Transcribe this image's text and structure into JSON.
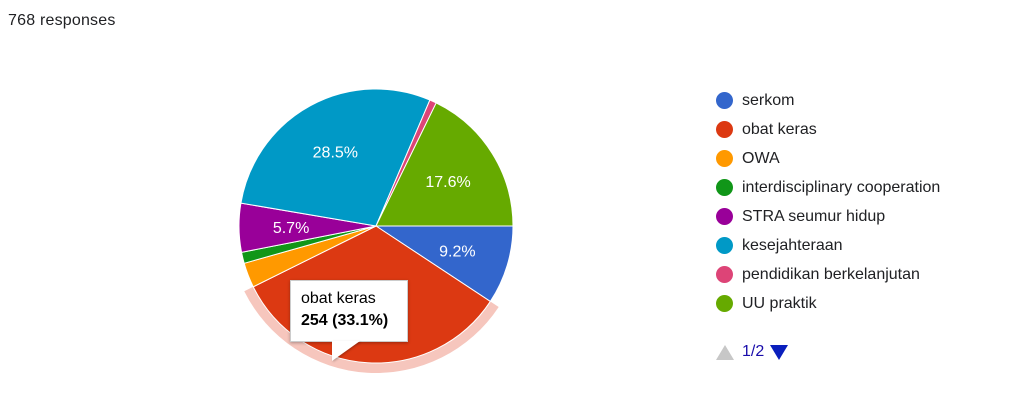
{
  "header": {
    "responses": "768 responses"
  },
  "chart_data": {
    "type": "pie",
    "categories": [
      "serkom",
      "obat keras",
      "OWA",
      "interdisciplinary cooperation",
      "STRA seumur hidup",
      "kesejahteraan",
      "pendidikan berkelanjutan",
      "UU praktik"
    ],
    "values": [
      9.2,
      33.1,
      2.9,
      1.3,
      5.7,
      28.5,
      0.8,
      17.6
    ],
    "colors": [
      "#3366cc",
      "#dc3912",
      "#ff9900",
      "#109618",
      "#990099",
      "#0099c6",
      "#dd4477",
      "#66aa00"
    ],
    "labels": [
      "9.2%",
      "",
      "",
      "",
      "5.7%",
      "28.5%",
      "",
      "17.6%"
    ],
    "highlighted_index": 1
  },
  "tooltip": {
    "name": "obat keras",
    "value": "254 (33.1%)"
  },
  "pager": {
    "text": "1/2"
  }
}
